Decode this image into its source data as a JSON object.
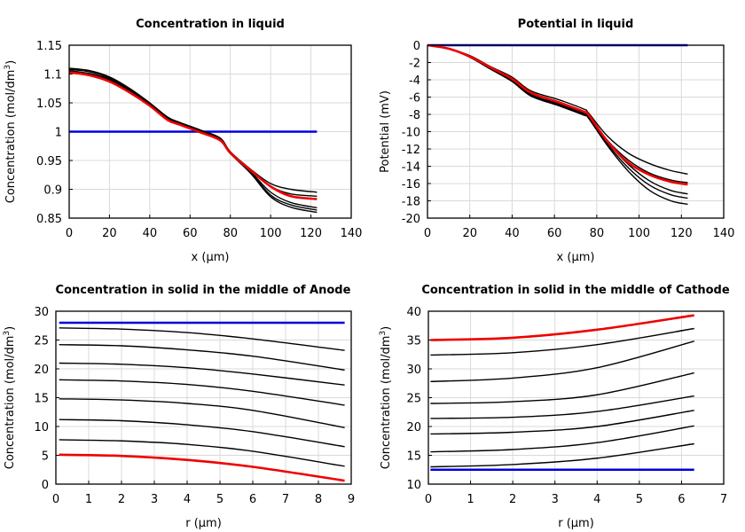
{
  "chart_data": [
    {
      "type": "line",
      "title": "Concentration in liquid",
      "xlabel": "x (µm)",
      "ylabel": "Concentration (mol/dm",
      "ylabel_sup": "3",
      "ylabel_tail": ")",
      "xlim": [
        0,
        140
      ],
      "ylim": [
        0.85,
        1.15
      ],
      "xticks": [
        "0",
        "20",
        "40",
        "60",
        "80",
        "100",
        "120",
        "140"
      ],
      "yticks": [
        "0.85",
        "0.9",
        "0.95",
        "1",
        "1.05",
        "1.1",
        "1.15"
      ],
      "series": [
        {
          "name": "t0",
          "color": "#0000dd",
          "x": [
            0,
            123
          ],
          "y": [
            1.0,
            1.0
          ]
        },
        {
          "name": "black1",
          "color": "#000000",
          "x": [
            0,
            10,
            20,
            30,
            40,
            49,
            55,
            65,
            75,
            80,
            90,
            100,
            110,
            123
          ],
          "y": [
            1.11,
            1.106,
            1.095,
            1.075,
            1.05,
            1.025,
            1.016,
            1.003,
            0.989,
            0.965,
            0.935,
            0.91,
            0.9,
            0.895
          ]
        },
        {
          "name": "black2",
          "color": "#000000",
          "x": [
            0,
            10,
            20,
            30,
            40,
            49,
            55,
            65,
            75,
            80,
            90,
            100,
            110,
            123
          ],
          "y": [
            1.108,
            1.104,
            1.093,
            1.073,
            1.049,
            1.024,
            1.015,
            1.002,
            0.988,
            0.965,
            0.934,
            0.905,
            0.892,
            0.888
          ]
        },
        {
          "name": "black3",
          "color": "#000000",
          "x": [
            0,
            10,
            20,
            30,
            40,
            49,
            55,
            65,
            75,
            80,
            90,
            100,
            110,
            123
          ],
          "y": [
            1.106,
            1.101,
            1.091,
            1.071,
            1.048,
            1.022,
            1.014,
            1.001,
            0.987,
            0.964,
            0.931,
            0.895,
            0.877,
            0.868
          ]
        },
        {
          "name": "black4",
          "color": "#000000",
          "x": [
            0,
            10,
            20,
            30,
            40,
            49,
            55,
            65,
            75,
            80,
            90,
            100,
            110,
            123
          ],
          "y": [
            1.105,
            1.1,
            1.09,
            1.07,
            1.047,
            1.021,
            1.013,
            1.0,
            0.986,
            0.963,
            0.93,
            0.89,
            0.873,
            0.864
          ]
        },
        {
          "name": "black5",
          "color": "#000000",
          "x": [
            0,
            10,
            20,
            30,
            40,
            49,
            55,
            65,
            75,
            80,
            90,
            100,
            110,
            123
          ],
          "y": [
            1.104,
            1.099,
            1.089,
            1.069,
            1.046,
            1.02,
            1.012,
            0.999,
            0.985,
            0.962,
            0.928,
            0.887,
            0.869,
            0.86
          ]
        },
        {
          "name": "final",
          "color": "#ee0000",
          "x": [
            0,
            10,
            20,
            30,
            40,
            49,
            55,
            65,
            75,
            80,
            90,
            100,
            110,
            123
          ],
          "y": [
            1.103,
            1.098,
            1.087,
            1.068,
            1.045,
            1.02,
            1.012,
            0.999,
            0.985,
            0.963,
            0.933,
            0.905,
            0.888,
            0.883
          ]
        }
      ]
    },
    {
      "type": "line",
      "title": "Potential in liquid",
      "xlabel": "x (µm)",
      "ylabel": "Potential (mV)",
      "ylabel_sup": "",
      "ylabel_tail": "",
      "xlim": [
        0,
        140
      ],
      "ylim": [
        -20,
        0
      ],
      "xticks": [
        "0",
        "20",
        "40",
        "60",
        "80",
        "100",
        "120",
        "140"
      ],
      "yticks": [
        "-20",
        "-18",
        "-16",
        "-14",
        "-12",
        "-10",
        "-8",
        "-6",
        "-4",
        "-2",
        "0"
      ],
      "series": [
        {
          "name": "t0",
          "color": "#0000dd",
          "x": [
            0,
            123
          ],
          "y": [
            0,
            0
          ]
        },
        {
          "name": "black1",
          "color": "#000000",
          "x": [
            0,
            10,
            20,
            30,
            40,
            49,
            62,
            74,
            76,
            85,
            95,
            105,
            115,
            123
          ],
          "y": [
            0,
            -0.4,
            -1.2,
            -2.5,
            -3.7,
            -5.3,
            -6.3,
            -7.4,
            -7.8,
            -10.5,
            -12.5,
            -13.7,
            -14.5,
            -14.9
          ]
        },
        {
          "name": "black2",
          "color": "#000000",
          "x": [
            0,
            10,
            20,
            30,
            40,
            49,
            62,
            74,
            76,
            85,
            95,
            105,
            115,
            123
          ],
          "y": [
            0,
            -0.4,
            -1.3,
            -2.6,
            -3.9,
            -5.5,
            -6.6,
            -7.7,
            -8.0,
            -11.0,
            -13.3,
            -14.8,
            -15.6,
            -15.9
          ]
        },
        {
          "name": "black3",
          "color": "#000000",
          "x": [
            0,
            10,
            20,
            30,
            40,
            49,
            62,
            74,
            76,
            85,
            95,
            105,
            115,
            123
          ],
          "y": [
            0,
            -0.4,
            -1.3,
            -2.7,
            -4.0,
            -5.7,
            -6.8,
            -7.9,
            -8.2,
            -11.2,
            -13.8,
            -15.7,
            -16.8,
            -17.2
          ]
        },
        {
          "name": "black4",
          "color": "#000000",
          "x": [
            0,
            10,
            20,
            30,
            40,
            49,
            62,
            74,
            76,
            85,
            95,
            105,
            115,
            123
          ],
          "y": [
            0,
            -0.4,
            -1.3,
            -2.7,
            -4.1,
            -5.8,
            -6.9,
            -8.0,
            -8.3,
            -11.4,
            -14.2,
            -16.2,
            -17.3,
            -17.7
          ]
        },
        {
          "name": "black5",
          "color": "#000000",
          "x": [
            0,
            10,
            20,
            30,
            40,
            49,
            62,
            74,
            76,
            85,
            95,
            105,
            115,
            123
          ],
          "y": [
            0,
            -0.4,
            -1.4,
            -2.8,
            -4.2,
            -5.9,
            -7.0,
            -8.1,
            -8.4,
            -11.6,
            -14.6,
            -16.8,
            -18.0,
            -18.4
          ]
        },
        {
          "name": "final",
          "color": "#ee0000",
          "x": [
            0,
            10,
            20,
            30,
            40,
            49,
            62,
            74,
            76,
            85,
            95,
            105,
            115,
            123
          ],
          "y": [
            0,
            -0.4,
            -1.3,
            -2.6,
            -3.9,
            -5.5,
            -6.6,
            -7.7,
            -8.0,
            -11.1,
            -13.6,
            -15.0,
            -15.8,
            -16.1
          ]
        }
      ]
    },
    {
      "type": "line",
      "title": "Concentration in solid in the middle of Anode",
      "xlabel": "r (µm)",
      "ylabel": "Concentration (mol/dm",
      "ylabel_sup": "3",
      "ylabel_tail": ")",
      "xlim": [
        0,
        9
      ],
      "ylim": [
        0,
        30
      ],
      "xticks": [
        "0",
        "1",
        "2",
        "3",
        "4",
        "5",
        "6",
        "7",
        "8",
        "9"
      ],
      "yticks": [
        "0",
        "5",
        "10",
        "15",
        "20",
        "25",
        "30"
      ],
      "series": [
        {
          "name": "t0",
          "color": "#0000dd",
          "x": [
            0.1,
            8.8
          ],
          "y": [
            28,
            28
          ]
        },
        {
          "name": "black1",
          "color": "#000000",
          "x": [
            0.1,
            2,
            4,
            6,
            8.8
          ],
          "y": [
            27.1,
            26.9,
            26.3,
            25.2,
            23.2
          ]
        },
        {
          "name": "black2",
          "color": "#000000",
          "x": [
            0.1,
            2,
            4,
            6,
            8.8
          ],
          "y": [
            24.2,
            24.0,
            23.3,
            22.2,
            19.8
          ]
        },
        {
          "name": "black3",
          "color": "#000000",
          "x": [
            0.1,
            2,
            4,
            6,
            8.8
          ],
          "y": [
            21.0,
            20.8,
            20.2,
            19.1,
            17.2
          ]
        },
        {
          "name": "black4",
          "color": "#000000",
          "x": [
            0.1,
            2,
            4,
            6,
            8.8
          ],
          "y": [
            18.1,
            17.9,
            17.3,
            16.1,
            13.7
          ]
        },
        {
          "name": "black5",
          "color": "#000000",
          "x": [
            0.1,
            2,
            4,
            6,
            8.8
          ],
          "y": [
            14.8,
            14.6,
            14.0,
            12.8,
            9.8
          ]
        },
        {
          "name": "black6",
          "color": "#000000",
          "x": [
            0.1,
            2,
            4,
            6,
            8.8
          ],
          "y": [
            11.2,
            11.0,
            10.3,
            9.1,
            6.5
          ]
        },
        {
          "name": "black7",
          "color": "#000000",
          "x": [
            0.1,
            2,
            4,
            6,
            8.8
          ],
          "y": [
            7.7,
            7.5,
            6.9,
            5.7,
            3.1
          ]
        },
        {
          "name": "final",
          "color": "#ee0000",
          "x": [
            0.1,
            2,
            4,
            6,
            8.8
          ],
          "y": [
            5.1,
            4.9,
            4.2,
            3.0,
            0.6
          ]
        }
      ]
    },
    {
      "type": "line",
      "title": "Concentration in solid in the middle of Cathode",
      "xlabel": "r (µm)",
      "ylabel": "Concentration (mol/dm",
      "ylabel_sup": "3",
      "ylabel_tail": ")",
      "xlim": [
        0,
        7
      ],
      "ylim": [
        10,
        40
      ],
      "xticks": [
        "0",
        "1",
        "2",
        "3",
        "4",
        "5",
        "6",
        "7"
      ],
      "yticks": [
        "10",
        "15",
        "20",
        "25",
        "30",
        "35",
        "40"
      ],
      "series": [
        {
          "name": "t0",
          "color": "#0000dd",
          "x": [
            0.05,
            6.3
          ],
          "y": [
            12.5,
            12.5
          ]
        },
        {
          "name": "black1",
          "color": "#000000",
          "x": [
            0.05,
            2,
            4,
            6.3
          ],
          "y": [
            13.0,
            13.4,
            14.5,
            17.0
          ]
        },
        {
          "name": "black2",
          "color": "#000000",
          "x": [
            0.05,
            2,
            4,
            6.3
          ],
          "y": [
            15.6,
            16.0,
            17.2,
            20.1
          ]
        },
        {
          "name": "black3",
          "color": "#000000",
          "x": [
            0.05,
            2,
            4,
            6.3
          ],
          "y": [
            18.7,
            19.0,
            20.0,
            22.8
          ]
        },
        {
          "name": "black4",
          "color": "#000000",
          "x": [
            0.05,
            2,
            4,
            6.3
          ],
          "y": [
            21.4,
            21.6,
            22.6,
            25.3
          ]
        },
        {
          "name": "black5",
          "color": "#000000",
          "x": [
            0.05,
            2,
            4,
            6.3
          ],
          "y": [
            24.0,
            24.3,
            25.5,
            29.3
          ]
        },
        {
          "name": "black6",
          "color": "#000000",
          "x": [
            0.05,
            2,
            4,
            6.3
          ],
          "y": [
            27.8,
            28.4,
            30.2,
            34.8
          ]
        },
        {
          "name": "black7",
          "color": "#000000",
          "x": [
            0.05,
            2,
            4,
            6.3
          ],
          "y": [
            32.4,
            32.8,
            34.2,
            37.0
          ]
        },
        {
          "name": "final",
          "color": "#ee0000",
          "x": [
            0.05,
            2,
            4,
            6.3
          ],
          "y": [
            35.0,
            35.4,
            36.8,
            39.3
          ]
        }
      ]
    }
  ]
}
